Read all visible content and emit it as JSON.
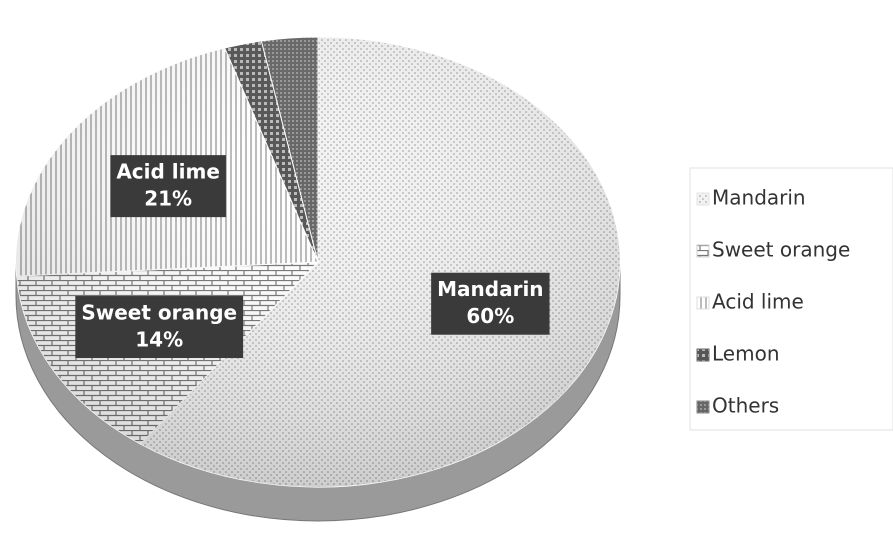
{
  "chart_data": {
    "type": "pie",
    "categories": [
      "Mandarin",
      "Sweet orange",
      "Acid lime",
      "Lemon",
      "Others"
    ],
    "values": [
      60,
      14,
      21,
      2,
      3
    ],
    "value_labels": [
      "60%",
      "14%",
      "21%",
      "2%",
      "3%"
    ],
    "colors": [
      "#e6e6e6",
      "#d0d0d0",
      "#dedede",
      "#6a6a6a",
      "#8a8a8a"
    ],
    "legend": "right"
  }
}
